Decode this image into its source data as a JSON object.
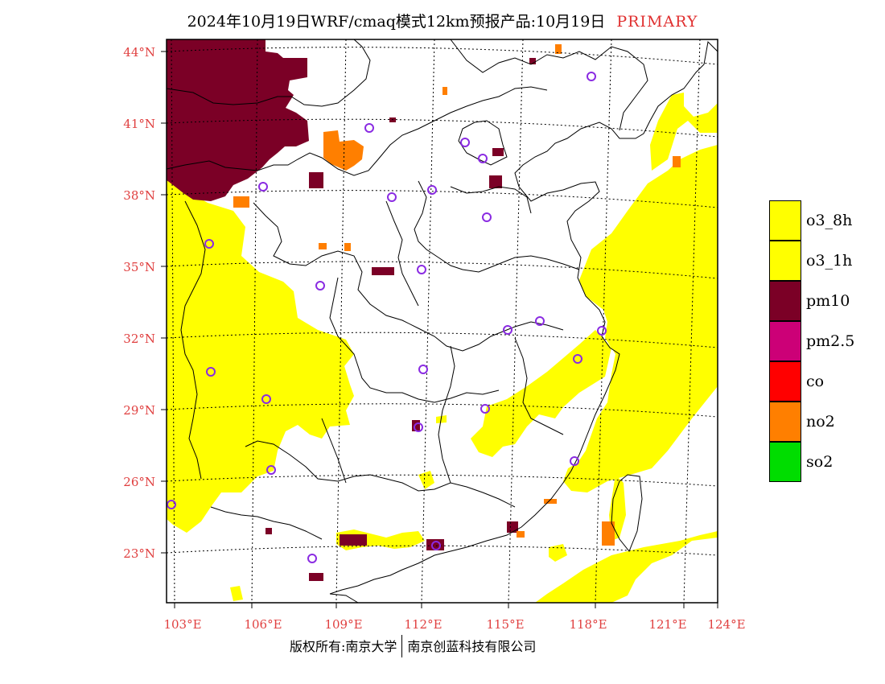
{
  "header": {
    "title": "2024年10月19日WRF/cmaq模式12km预报产品:10月19日",
    "tag": "PRIMARY",
    "tag_color": "#e03030"
  },
  "map": {
    "lon_ticks": [
      "103°E",
      "106°E",
      "109°E",
      "112°E",
      "115°E",
      "118°E",
      "121°E",
      "124°E"
    ],
    "lat_ticks": [
      "44°N",
      "41°N",
      "38°N",
      "35°N",
      "32°N",
      "29°N",
      "26°N",
      "23°N"
    ],
    "tick_label_color": "#e04040",
    "station_marker_color": "#8a2be2"
  },
  "legend": {
    "items": [
      {
        "label": "o3_8h",
        "color": "#ffff00"
      },
      {
        "label": "o3_1h",
        "color": "#ffff00"
      },
      {
        "label": "pm10",
        "color": "#7b0026"
      },
      {
        "label": "pm2.5",
        "color": "#cc0077"
      },
      {
        "label": "co",
        "color": "#ff0000"
      },
      {
        "label": "no2",
        "color": "#ff7f00"
      },
      {
        "label": "so2",
        "color": "#00dd00"
      }
    ]
  },
  "footer": {
    "left": "版权所有:南京大学",
    "right": "南京创蓝科技有限公司"
  }
}
